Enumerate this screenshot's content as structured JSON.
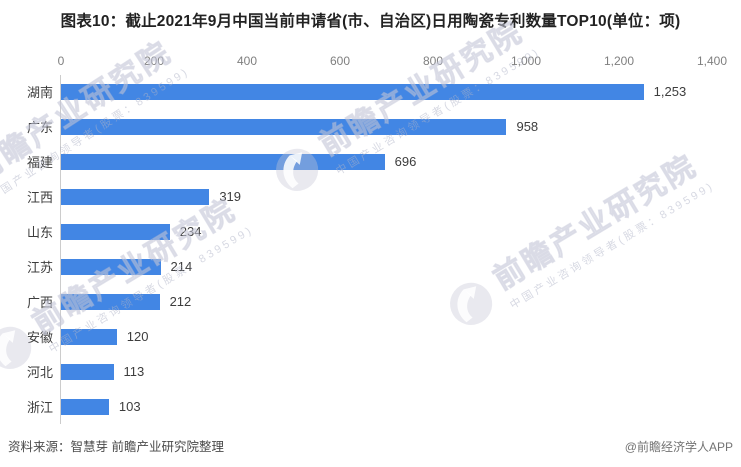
{
  "title": "图表10：截止2021年9月中国当前申请省(市、自治区)日用陶瓷专利数量TOP10(单位：项)",
  "chart_data": {
    "type": "bar",
    "orientation": "horizontal",
    "title": "截止2021年9月中国当前申请省(市、自治区)日用陶瓷专利数量TOP10",
    "unit": "项",
    "categories": [
      "湖南",
      "广东",
      "福建",
      "江西",
      "山东",
      "江苏",
      "广西",
      "安徽",
      "河北",
      "浙江"
    ],
    "values": [
      1253,
      958,
      696,
      319,
      234,
      214,
      212,
      120,
      113,
      103
    ],
    "value_labels": [
      "1,253",
      "958",
      "696",
      "319",
      "234",
      "214",
      "212",
      "120",
      "113",
      "103"
    ],
    "x_ticks": [
      "0",
      "200",
      "400",
      "600",
      "800",
      "1,000",
      "1,200",
      "1,400"
    ],
    "xlim": [
      0,
      1400
    ],
    "bar_color": "#4286E4",
    "grid": false,
    "legend": false
  },
  "footer": {
    "source": "资料来源：智慧芽 前瞻产业研究院整理",
    "credit": "@前瞻经济学人APP"
  },
  "watermark": {
    "brand": "前瞻产业研究院",
    "tagline": "中国产业咨询领导者(股票：839599)"
  }
}
